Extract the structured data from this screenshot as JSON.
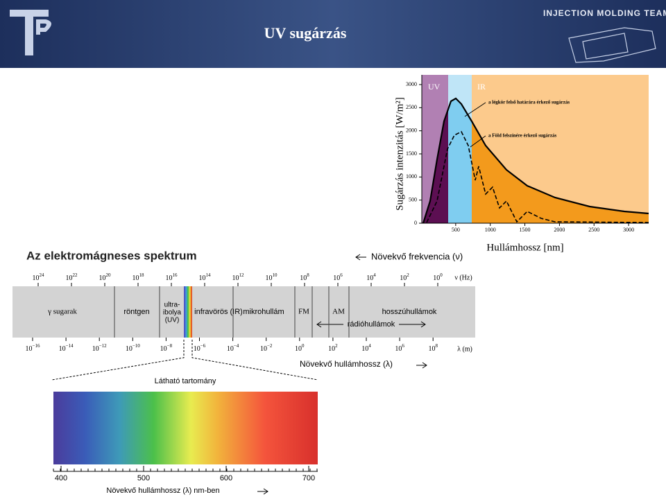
{
  "header": {
    "title": "UV sugárzás",
    "logo_text": "Injection Molding Team"
  },
  "solar_chart": {
    "y_label": "Sugárzás intenzitás [W/m²]",
    "x_label": "Hullámhossz [nm]",
    "yticks": [
      0,
      500,
      1000,
      1500,
      2000,
      2500,
      3000
    ],
    "xticks": [
      500,
      1000,
      1500,
      2000,
      2500,
      3000
    ],
    "regions": [
      "UV",
      "IR"
    ],
    "annotations": [
      "a légkör felső határára érkező sugárzás",
      "a Föld felszínére érkező sugárzás"
    ]
  },
  "spectrum": {
    "title": "Az elektromágneses spektrum",
    "freq_label": "Növekvő frekvencia (ν)",
    "base": "10",
    "freq_exponents": [
      "24",
      "22",
      "20",
      "18",
      "16",
      "14",
      "12",
      "10",
      "8",
      "6",
      "4",
      "2",
      "0"
    ],
    "freq_unit": "ν (Hz)",
    "wave_exponents": [
      "−16",
      "−14",
      "−12",
      "−10",
      "−8",
      "−6",
      "−4",
      "−2",
      "0",
      "2",
      "4",
      "6",
      "8"
    ],
    "wave_unit": "λ (m)",
    "bands": [
      "γ sugarak",
      "röntgen",
      "ultra-",
      "ibolya",
      "(UV)",
      "infravörös (IR)",
      "mikrohullám",
      "FM",
      "AM",
      "hosszúhullámok",
      "rádióhullámok"
    ],
    "wave_label": "Növekvő hullámhossz (λ)",
    "visible": {
      "title": "Látható tartomány",
      "ticks": [
        400,
        500,
        600,
        700
      ],
      "axis_label": "Növekvő hullámhossz (λ) nm-ben"
    }
  }
}
